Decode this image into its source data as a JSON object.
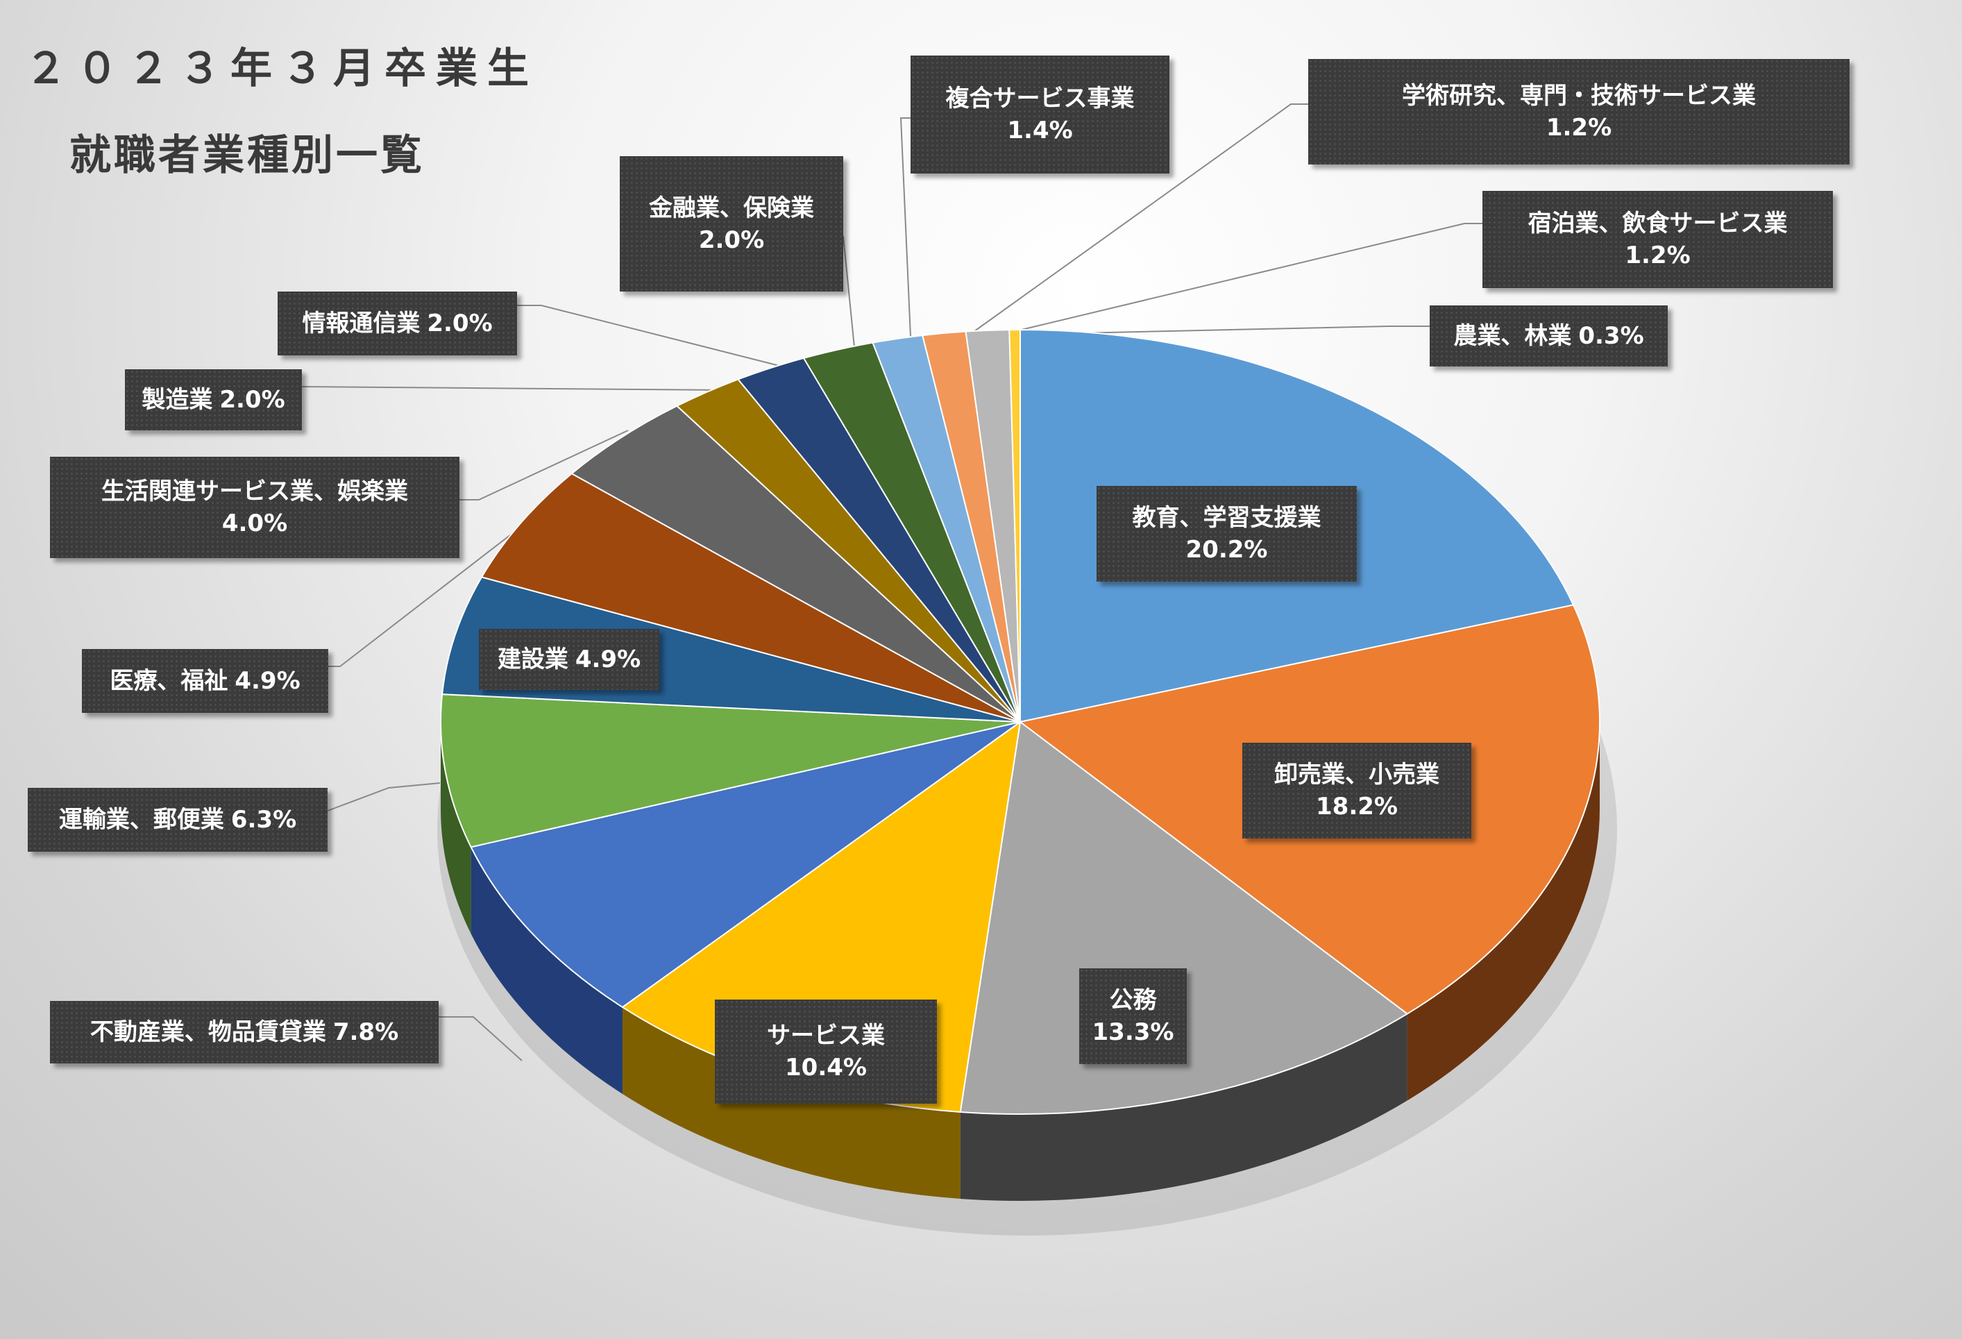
{
  "title": {
    "line1": "２０２３年３月卒業生",
    "line2": "就職者業種別一覧"
  },
  "chart_data": {
    "type": "pie",
    "style": "3d",
    "start_angle_deg": 90,
    "direction": "clockwise",
    "unit": "%",
    "slices": [
      {
        "label": "教育、学習支援業",
        "value": 20.2,
        "value_label": "20.2%",
        "color": "#5B9BD5",
        "side_color": "#2E5F8F"
      },
      {
        "label": "卸売業、小売業",
        "value": 18.2,
        "value_label": "18.2%",
        "color": "#ED7D31",
        "side_color": "#6A3410"
      },
      {
        "label": "公務",
        "value": 13.3,
        "value_label": "13.3%",
        "color": "#A5A5A5",
        "side_color": "#3F3F3F"
      },
      {
        "label": "サービス業",
        "value": 10.4,
        "value_label": "10.4%",
        "color": "#FFC000",
        "side_color": "#7F6000"
      },
      {
        "label": "不動産業、物品賃貸業",
        "value": 7.8,
        "value_label": "7.8%",
        "color": "#4472C4",
        "side_color": "#223D78"
      },
      {
        "label": "運輸業、郵便業",
        "value": 6.3,
        "value_label": "6.3%",
        "color": "#70AD47",
        "side_color": "#3B5E24"
      },
      {
        "label": "建設業",
        "value": 4.9,
        "value_label": "4.9%",
        "color": "#255E91",
        "side_color": "#143552"
      },
      {
        "label": "医療、福祉",
        "value": 4.9,
        "value_label": "4.9%",
        "color": "#9E480E",
        "side_color": "#4F2407"
      },
      {
        "label": "生活関連サービス業、娯楽業",
        "value": 4.0,
        "value_label": "4.0%",
        "color": "#636363",
        "side_color": "#2F2F2F"
      },
      {
        "label": "製造業",
        "value": 2.0,
        "value_label": "2.0%",
        "color": "#997300",
        "side_color": "#4C3900"
      },
      {
        "label": "情報通信業",
        "value": 2.0,
        "value_label": "2.0%",
        "color": "#264478",
        "side_color": "#13223C"
      },
      {
        "label": "金融業、保険業",
        "value": 2.0,
        "value_label": "2.0%",
        "color": "#43682B",
        "side_color": "#223416"
      },
      {
        "label": "複合サービス事業",
        "value": 1.4,
        "value_label": "1.4%",
        "color": "#7CAFDD",
        "side_color": "#3E6E99"
      },
      {
        "label": "宿泊業、飲食サービス業",
        "value": 1.2,
        "value_label": "1.2%",
        "color": "#F1975A",
        "side_color": "#8A4A1F"
      },
      {
        "label": "学術研究、専門・技術サービス業",
        "value": 1.2,
        "value_label": "1.2%",
        "color": "#B7B7B7",
        "side_color": "#5C5C5C"
      },
      {
        "label": "農業、林業",
        "value": 0.3,
        "value_label": "0.3%",
        "color": "#FFCD33",
        "side_color": "#8F7000"
      }
    ]
  }
}
